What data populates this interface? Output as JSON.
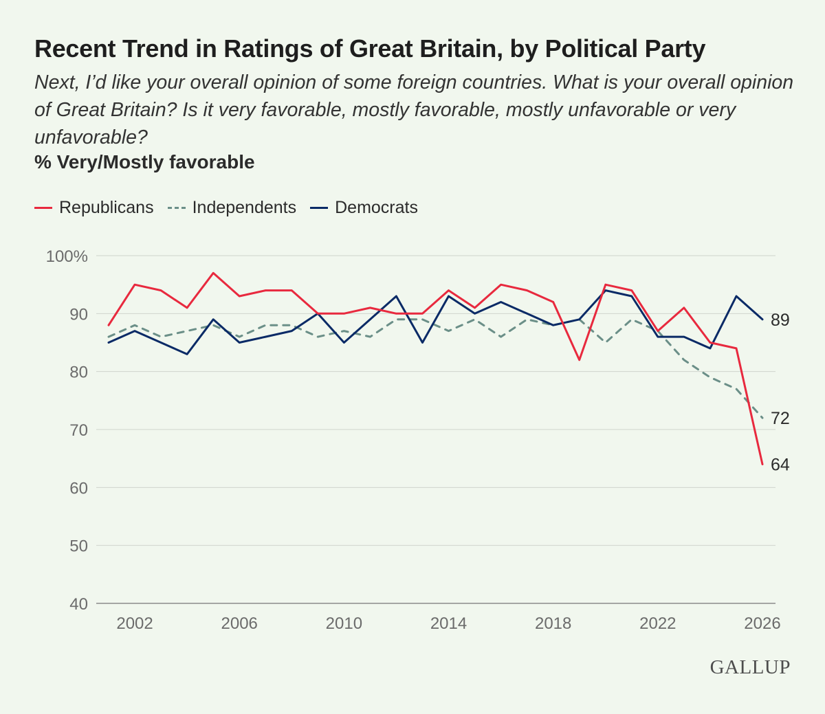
{
  "logo": "GALLUP",
  "chart_data": {
    "type": "line",
    "title": "Recent Trend in Ratings of Great Britain, by Political Party",
    "subtitle": "Next, I’d like your overall opinion of some foreign countries. What is your overall opinion of Great Britain? Is it very favorable, mostly favorable, mostly unfavorable or very unfavorable?",
    "ylabel": "% Very/Mostly favorable",
    "xlim": [
      2001,
      2026
    ],
    "ylim": [
      40,
      100
    ],
    "yticks": [
      {
        "value": 100,
        "label": "100%"
      },
      {
        "value": 90,
        "label": "90"
      },
      {
        "value": 80,
        "label": "80"
      },
      {
        "value": 70,
        "label": "70"
      },
      {
        "value": 60,
        "label": "60"
      },
      {
        "value": 50,
        "label": "50"
      },
      {
        "value": 40,
        "label": "40"
      }
    ],
    "xticks": [
      {
        "value": 2002,
        "label": "2002"
      },
      {
        "value": 2006,
        "label": "2006"
      },
      {
        "value": 2010,
        "label": "2010"
      },
      {
        "value": 2014,
        "label": "2014"
      },
      {
        "value": 2018,
        "label": "2018"
      },
      {
        "value": 2022,
        "label": "2022"
      },
      {
        "value": 2026,
        "label": "2026"
      }
    ],
    "grid": "horizontal",
    "legend_position": "top-left",
    "x": [
      2001,
      2002,
      2003,
      2004,
      2005,
      2006,
      2007,
      2008,
      2009,
      2010,
      2011,
      2012,
      2013,
      2014,
      2015,
      2016,
      2017,
      2018,
      2019,
      2020,
      2021,
      2022,
      2023,
      2024,
      2025,
      2026
    ],
    "series": [
      {
        "name": "Republicans",
        "color": "#e8293e",
        "style": "solid",
        "values": [
          88,
          95,
          94,
          91,
          97,
          93,
          94,
          94,
          90,
          90,
          91,
          90,
          90,
          94,
          91,
          95,
          94,
          92,
          82,
          95,
          94,
          87,
          91,
          85,
          84,
          64
        ],
        "end_label": "64"
      },
      {
        "name": "Independents",
        "color": "#6b8f88",
        "style": "dashed",
        "values": [
          86,
          88,
          86,
          87,
          88,
          86,
          88,
          88,
          86,
          87,
          86,
          89,
          89,
          87,
          89,
          86,
          89,
          88,
          89,
          85,
          89,
          87,
          82,
          79,
          77,
          72
        ],
        "end_label": "72"
      },
      {
        "name": "Democrats",
        "color": "#0a2a66",
        "style": "solid",
        "values": [
          85,
          87,
          85,
          83,
          89,
          85,
          86,
          87,
          90,
          85,
          89,
          93,
          85,
          93,
          90,
          92,
          90,
          88,
          89,
          94,
          93,
          86,
          86,
          84,
          93,
          89
        ],
        "end_label": "89"
      }
    ]
  }
}
